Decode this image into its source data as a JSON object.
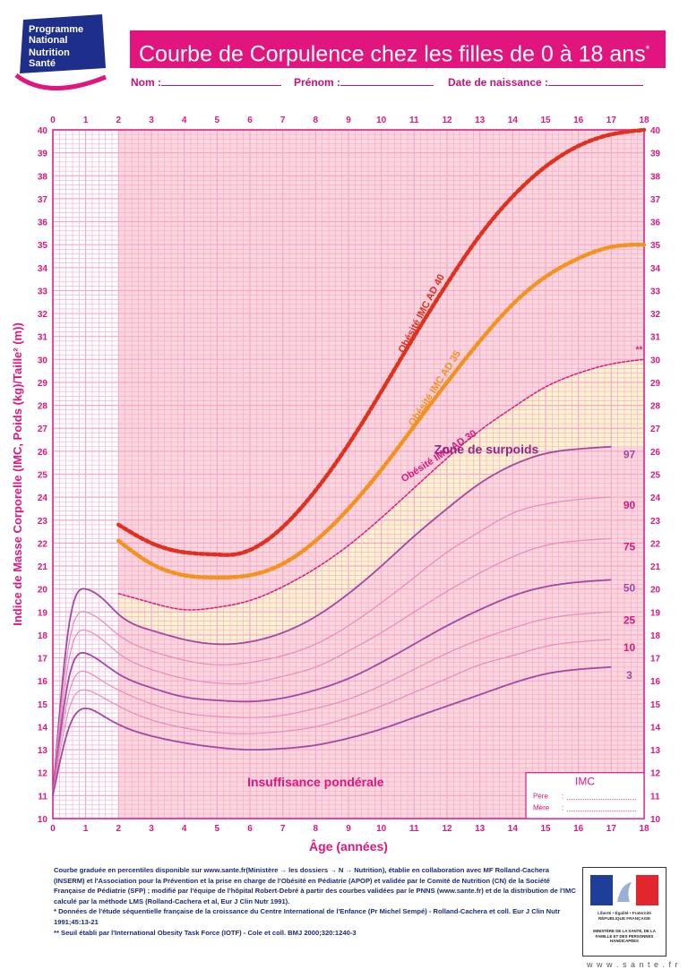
{
  "logo": {
    "line1": "Programme",
    "line2": "National",
    "line3": "Nutrition",
    "line4": "Santé"
  },
  "banner": {
    "title": "Courbe de Corpulence chez les filles de 0 à 18 ans",
    "mark": "*"
  },
  "form": {
    "nom": "Nom :",
    "prenom": "Prénom :",
    "naissance": "Date de naissance :"
  },
  "colors": {
    "pink": "#e2157f",
    "grid": "#f4a8cd",
    "purple": "#a347a3",
    "red": "#e0301e",
    "orange": "#f5911f",
    "zone_pink": "#fbd6dc",
    "zone_yellow": "#fff3cf"
  },
  "chart_data": {
    "type": "line",
    "title": "Courbe de Corpulence chez les filles de 0 à 18 ans",
    "xlabel": "Âge (années)",
    "ylabel": "Indice de Masse Corporelle (IMC, Poids (kg)/Taille² (m))",
    "xlim": [
      0,
      18
    ],
    "ylim": [
      10,
      40
    ],
    "x_ticks": [
      0,
      1,
      2,
      3,
      4,
      5,
      6,
      7,
      8,
      9,
      10,
      11,
      12,
      13,
      14,
      15,
      16,
      17,
      18
    ],
    "y_ticks": [
      10,
      11,
      12,
      13,
      14,
      15,
      16,
      17,
      18,
      19,
      20,
      21,
      22,
      23,
      24,
      25,
      26,
      27,
      28,
      29,
      30,
      31,
      32,
      33,
      34,
      35,
      36,
      37,
      38,
      39,
      40
    ],
    "grid": true,
    "percentile_series": [
      {
        "name": "97",
        "x": [
          0,
          0.5,
          1,
          1.5,
          2,
          3,
          4,
          5,
          6,
          7,
          8,
          9,
          10,
          11,
          12,
          13,
          14,
          15,
          16,
          17
        ],
        "values": [
          11,
          18.5,
          20,
          19.6,
          18.9,
          18.2,
          17.8,
          17.6,
          17.7,
          18.1,
          18.8,
          19.8,
          21.0,
          22.3,
          23.5,
          24.6,
          25.4,
          25.9,
          26.1,
          26.2
        ]
      },
      {
        "name": "90",
        "x": [
          0,
          0.5,
          1,
          1.5,
          2,
          3,
          4,
          5,
          6,
          7,
          8,
          9,
          10,
          11,
          12,
          13,
          14,
          15,
          16,
          17
        ],
        "values": [
          11,
          17.7,
          19.0,
          18.6,
          18.0,
          17.3,
          16.9,
          16.7,
          16.8,
          17.1,
          17.6,
          18.4,
          19.4,
          20.5,
          21.6,
          22.5,
          23.3,
          23.7,
          23.9,
          24.0
        ]
      },
      {
        "name": "75",
        "x": [
          0,
          0.5,
          1,
          1.5,
          2,
          3,
          4,
          5,
          6,
          7,
          8,
          9,
          10,
          11,
          12,
          13,
          14,
          15,
          16,
          17
        ],
        "values": [
          11,
          17.0,
          18.2,
          17.8,
          17.2,
          16.5,
          16.1,
          15.9,
          15.9,
          16.2,
          16.6,
          17.3,
          18.1,
          19.0,
          19.9,
          20.7,
          21.4,
          21.9,
          22.1,
          22.2
        ]
      },
      {
        "name": "50",
        "x": [
          0,
          0.5,
          1,
          1.5,
          2,
          3,
          4,
          5,
          6,
          7,
          8,
          9,
          10,
          11,
          12,
          13,
          14,
          15,
          16,
          17
        ],
        "values": [
          11,
          16.2,
          17.2,
          16.8,
          16.3,
          15.7,
          15.3,
          15.15,
          15.1,
          15.25,
          15.6,
          16.1,
          16.8,
          17.6,
          18.4,
          19.1,
          19.7,
          20.1,
          20.3,
          20.4
        ]
      },
      {
        "name": "25",
        "x": [
          0,
          0.5,
          1,
          1.5,
          2,
          3,
          4,
          5,
          6,
          7,
          8,
          9,
          10,
          11,
          12,
          13,
          14,
          15,
          16,
          17
        ],
        "values": [
          11,
          15.5,
          16.4,
          16.0,
          15.6,
          15.0,
          14.6,
          14.45,
          14.4,
          14.5,
          14.8,
          15.2,
          15.8,
          16.5,
          17.2,
          17.8,
          18.3,
          18.7,
          18.9,
          19.0
        ]
      },
      {
        "name": "10",
        "x": [
          0,
          0.5,
          1,
          1.5,
          2,
          3,
          4,
          5,
          6,
          7,
          8,
          9,
          10,
          11,
          12,
          13,
          14,
          15,
          16,
          17
        ],
        "values": [
          11,
          14.8,
          15.6,
          15.3,
          14.9,
          14.3,
          13.95,
          13.75,
          13.7,
          13.8,
          14.0,
          14.4,
          14.9,
          15.5,
          16.1,
          16.7,
          17.1,
          17.5,
          17.7,
          17.8
        ]
      },
      {
        "name": "3",
        "x": [
          0,
          0.5,
          1,
          1.5,
          2,
          3,
          4,
          5,
          6,
          7,
          8,
          9,
          10,
          11,
          12,
          13,
          14,
          15,
          16,
          17
        ],
        "values": [
          11,
          14.0,
          14.8,
          14.5,
          14.1,
          13.6,
          13.3,
          13.1,
          13.0,
          13.05,
          13.2,
          13.5,
          13.9,
          14.4,
          14.9,
          15.4,
          15.9,
          16.3,
          16.5,
          16.6
        ]
      }
    ],
    "obesity_series": [
      {
        "name": "Obésité IMC AD 40",
        "x": [
          2,
          3,
          4,
          5,
          5.5,
          6,
          7,
          8,
          9,
          10,
          11,
          12,
          13,
          14,
          15,
          16,
          17,
          18
        ],
        "values": [
          22.8,
          22.0,
          21.6,
          21.5,
          21.5,
          21.7,
          22.7,
          24.3,
          26.3,
          28.6,
          31.0,
          33.3,
          35.4,
          37.1,
          38.4,
          39.3,
          39.8,
          40.0
        ]
      },
      {
        "name": "Obésité IMC AD 35",
        "x": [
          2,
          3,
          4,
          5,
          6,
          7,
          8,
          9,
          10,
          11,
          12,
          13,
          14,
          15,
          16,
          17,
          18
        ],
        "values": [
          22.1,
          21.1,
          20.6,
          20.5,
          20.6,
          21.1,
          22.1,
          23.5,
          25.2,
          27.1,
          29.0,
          30.8,
          32.4,
          33.6,
          34.4,
          34.9,
          35.0
        ]
      },
      {
        "name": "Obésité IMC AD 30",
        "x": [
          2,
          3,
          4,
          5,
          6,
          7,
          8,
          9,
          10,
          11,
          12,
          13,
          14,
          15,
          16,
          17,
          18
        ],
        "values": [
          19.8,
          19.4,
          19.1,
          19.2,
          19.5,
          20.1,
          20.9,
          21.9,
          23.1,
          24.4,
          25.7,
          26.9,
          27.9,
          28.8,
          29.4,
          29.8,
          30.0
        ]
      }
    ],
    "annotations": {
      "overweight_zone": "Zone de surpoids",
      "underweight_zone": "Insuffisance pondérale",
      "threshold_mark": "**",
      "imc_box_title": "IMC",
      "imc_father": "Père",
      "imc_mother": "Mère",
      "imc_colon": ":"
    }
  },
  "footer": {
    "line1": "Courbe graduée en percentiles disponible sur www.sante.fr(Ministère → les dossiers → N → Nutrition), établie en collaboration avec MF Rolland-Cachera (INSERM) et l'Association pour la Prévention et la prise en charge de l'Obésité en Pédiatrie (APOP) et validée par le Comité de Nutrition (CN) de la Société Française de Pédiatrie (SFP) ; modifié par l'équipe de l'hôpital Robert-Debré à partir des courbes validées par le PNNS (www.sante.fr) et de la distribution de l'IMC calculé par la méthode LMS (Rolland-Cachera et al, Eur J Clin Nutr 1991).",
    "line2": "* Données de l'étude séquentielle française de la croissance du Centre International de l'Enfance (Pr Michel Sempé) - Rolland-Cachera et coll. Eur J Clin Nutr 1991;45:13-21",
    "line3": "** Seuil établi par l'International Obesity Task Force (IOTF) - Cole et coll. BMJ 2000;320:1240-3"
  },
  "government": {
    "motto": "Liberté • Égalité • Fraternité",
    "republic": "RÉPUBLIQUE FRANÇAISE",
    "ministry": "MINISTÈRE DE LA SANTÉ, DE LA FAMILLE ET DES PERSONNES HANDICAPÉES",
    "site": "w w w . s a n t e . f r"
  }
}
